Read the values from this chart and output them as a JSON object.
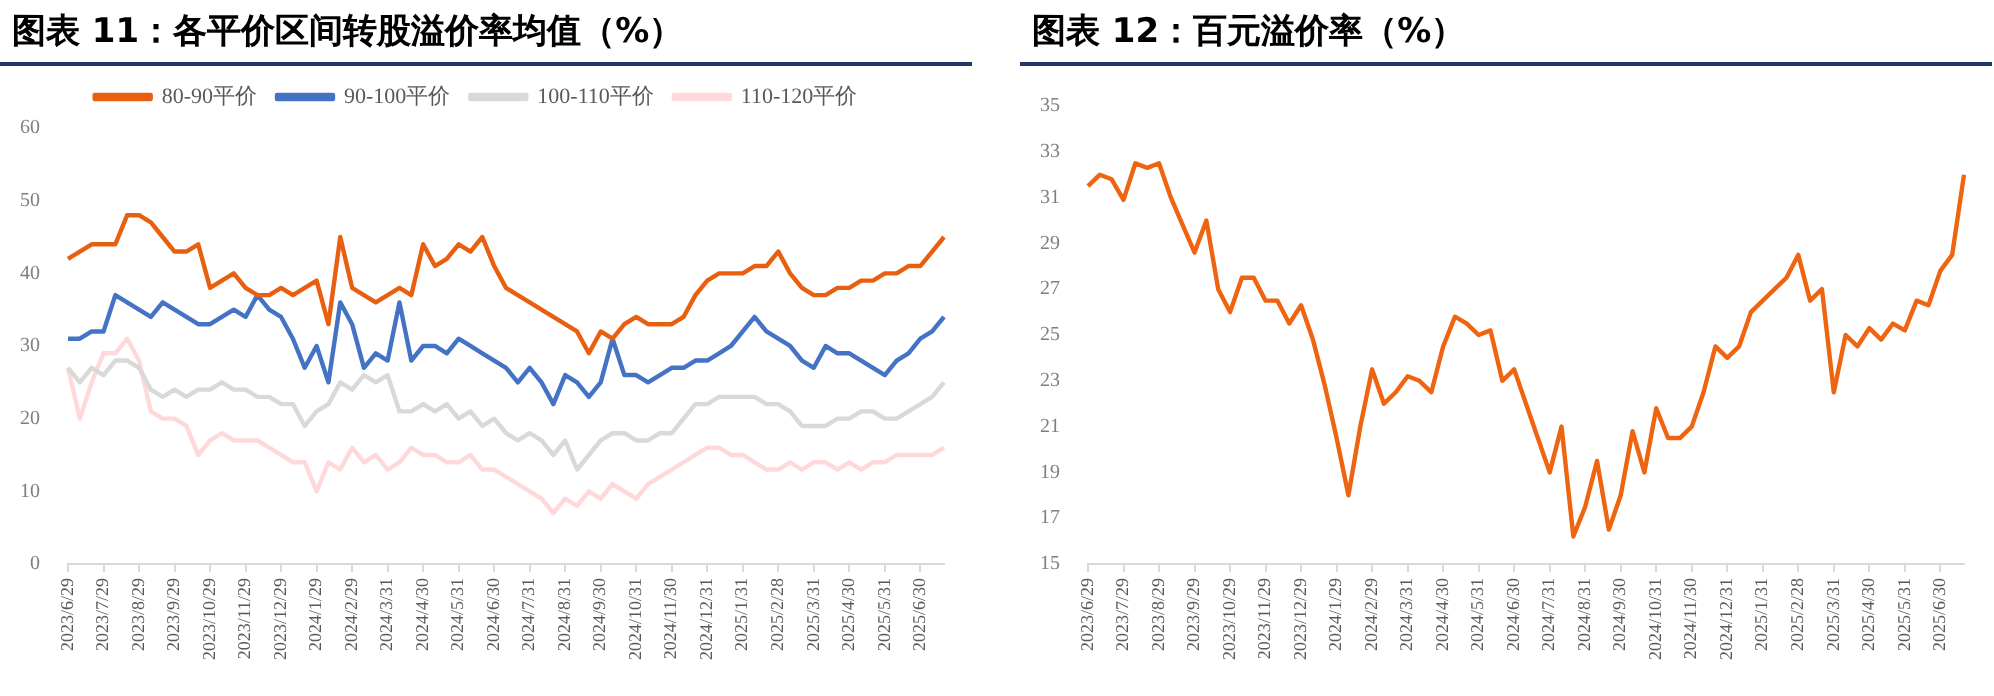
{
  "chart_data": [
    {
      "type": "line",
      "title": "图表 11：各平价区间转股溢价率均值（%）",
      "categories": [
        "2023/6/29",
        null,
        null,
        "2023/7/29",
        null,
        null,
        "2023/8/29",
        null,
        null,
        "2023/9/29",
        null,
        null,
        "2023/10/29",
        null,
        null,
        "2023/11/29",
        null,
        null,
        "2023/12/29",
        null,
        null,
        "2024/1/29",
        null,
        null,
        "2024/2/29",
        null,
        null,
        "2024/3/31",
        null,
        null,
        "2024/4/30",
        null,
        null,
        "2024/5/31",
        null,
        null,
        "2024/6/30",
        null,
        null,
        "2024/7/31",
        null,
        null,
        "2024/8/31",
        null,
        null,
        "2024/9/30",
        null,
        null,
        "2024/10/31",
        null,
        null,
        "2024/11/30",
        null,
        null,
        "2024/12/31",
        null,
        null,
        "2025/1/31",
        null,
        null,
        "2025/2/28",
        null,
        null,
        "2025/3/31",
        null,
        null,
        "2025/4/30",
        null,
        null,
        "2025/5/31",
        null,
        null,
        "2025/6/30",
        null,
        null
      ],
      "series": [
        {
          "name": "80-90平价",
          "color": "#e8600f",
          "values": [
            42,
            43,
            44,
            44,
            44,
            48,
            48,
            47,
            45,
            43,
            43,
            44,
            38,
            39,
            40,
            38,
            37,
            37,
            38,
            37,
            38,
            39,
            33,
            45,
            38,
            37,
            36,
            37,
            38,
            37,
            44,
            41,
            42,
            44,
            43,
            45,
            41,
            38,
            37,
            36,
            35,
            34,
            33,
            32,
            29,
            32,
            31,
            33,
            34,
            33,
            33,
            33,
            34,
            37,
            39,
            40,
            40,
            40,
            41,
            41,
            43,
            40,
            38,
            37,
            37,
            38,
            38,
            39,
            39,
            40,
            40,
            41,
            41,
            43,
            45
          ]
        },
        {
          "name": "90-100平价",
          "color": "#4472c4",
          "values": [
            31,
            31,
            32,
            32,
            37,
            36,
            35,
            34,
            36,
            35,
            34,
            33,
            33,
            34,
            35,
            34,
            37,
            35,
            34,
            31,
            27,
            30,
            25,
            36,
            33,
            27,
            29,
            28,
            36,
            28,
            30,
            30,
            29,
            31,
            30,
            29,
            28,
            27,
            25,
            27,
            25,
            22,
            26,
            25,
            23,
            25,
            31,
            26,
            26,
            25,
            26,
            27,
            27,
            28,
            28,
            29,
            30,
            32,
            34,
            32,
            31,
            30,
            28,
            27,
            30,
            29,
            29,
            28,
            27,
            26,
            28,
            29,
            31,
            32,
            34
          ]
        },
        {
          "name": "100-110平价",
          "color": "#d9d9d9",
          "values": [
            27,
            25,
            27,
            26,
            28,
            28,
            27,
            24,
            23,
            24,
            23,
            24,
            24,
            25,
            24,
            24,
            23,
            23,
            22,
            22,
            19,
            21,
            22,
            25,
            24,
            26,
            25,
            26,
            21,
            21,
            22,
            21,
            22,
            20,
            21,
            19,
            20,
            18,
            17,
            18,
            17,
            15,
            17,
            13,
            15,
            17,
            18,
            18,
            17,
            17,
            18,
            18,
            20,
            22,
            22,
            23,
            23,
            23,
            23,
            22,
            22,
            21,
            19,
            19,
            19,
            20,
            20,
            21,
            21,
            20,
            20,
            21,
            22,
            23,
            25
          ]
        },
        {
          "name": "110-120平价",
          "color": "#ffd9d9",
          "values": [
            27,
            20,
            25,
            29,
            29,
            31,
            28,
            21,
            20,
            20,
            19,
            15,
            17,
            18,
            17,
            17,
            17,
            16,
            15,
            14,
            14,
            10,
            14,
            13,
            16,
            14,
            15,
            13,
            14,
            16,
            15,
            15,
            14,
            14,
            15,
            13,
            13,
            12,
            11,
            10,
            9,
            7,
            9,
            8,
            10,
            9,
            11,
            10,
            9,
            11,
            12,
            13,
            14,
            15,
            16,
            16,
            15,
            15,
            14,
            13,
            13,
            14,
            13,
            14,
            14,
            13,
            14,
            13,
            14,
            14,
            15,
            15,
            15,
            15,
            16
          ]
        }
      ],
      "ylim": [
        0,
        60
      ],
      "yticks": [
        0,
        10,
        20,
        30,
        40,
        50,
        60
      ],
      "legend": "top",
      "marker": "none",
      "line_style": "solid"
    },
    {
      "type": "line",
      "title": "图表 12：百元溢价率（%）",
      "categories": [
        "2023/6/29",
        null,
        null,
        "2023/7/29",
        null,
        null,
        "2023/8/29",
        null,
        null,
        "2023/9/29",
        null,
        null,
        "2023/10/29",
        null,
        null,
        "2023/11/29",
        null,
        null,
        "2023/12/29",
        null,
        null,
        "2024/1/29",
        null,
        null,
        "2024/2/29",
        null,
        null,
        "2024/3/31",
        null,
        null,
        "2024/4/30",
        null,
        null,
        "2024/5/31",
        null,
        null,
        "2024/6/30",
        null,
        null,
        "2024/7/31",
        null,
        null,
        "2024/8/31",
        null,
        null,
        "2024/9/30",
        null,
        null,
        "2024/10/31",
        null,
        null,
        "2024/11/30",
        null,
        null,
        "2024/12/31",
        null,
        null,
        "2025/1/31",
        null,
        null,
        "2025/2/28",
        null,
        null,
        "2025/3/31",
        null,
        null,
        "2025/4/30",
        null,
        null,
        "2025/5/31",
        null,
        null,
        "2025/6/30",
        null,
        null
      ],
      "series": [
        {
          "color": "#ee6410",
          "values": [
            31.5,
            32,
            31.8,
            30.9,
            32.5,
            32.3,
            32.5,
            31,
            29.8,
            28.6,
            30,
            27,
            26,
            27.5,
            27.5,
            26.5,
            26.5,
            25.5,
            26.3,
            24.8,
            22.8,
            20.5,
            18,
            21,
            23.5,
            22,
            22.5,
            23.2,
            23,
            22.5,
            24.5,
            25.8,
            25.5,
            25,
            25.2,
            23,
            23.5,
            22,
            20.5,
            19,
            21,
            16.2,
            17.5,
            19.5,
            16.5,
            18,
            20.8,
            19,
            21.8,
            20.5,
            20.5,
            21,
            22.5,
            24.5,
            24,
            24.5,
            26,
            26.5,
            27,
            27.5,
            28.5,
            26.5,
            27,
            22.5,
            25,
            24.5,
            25.3,
            24.8,
            25.5,
            25.2,
            26.5,
            26.3,
            27.8,
            28.5,
            32
          ]
        }
      ],
      "ylim": [
        15,
        35
      ],
      "yticks": [
        15,
        17,
        19,
        21,
        23,
        25,
        27,
        29,
        31,
        33,
        35
      ],
      "legend": false,
      "marker": "none",
      "line_style": "solid"
    }
  ]
}
